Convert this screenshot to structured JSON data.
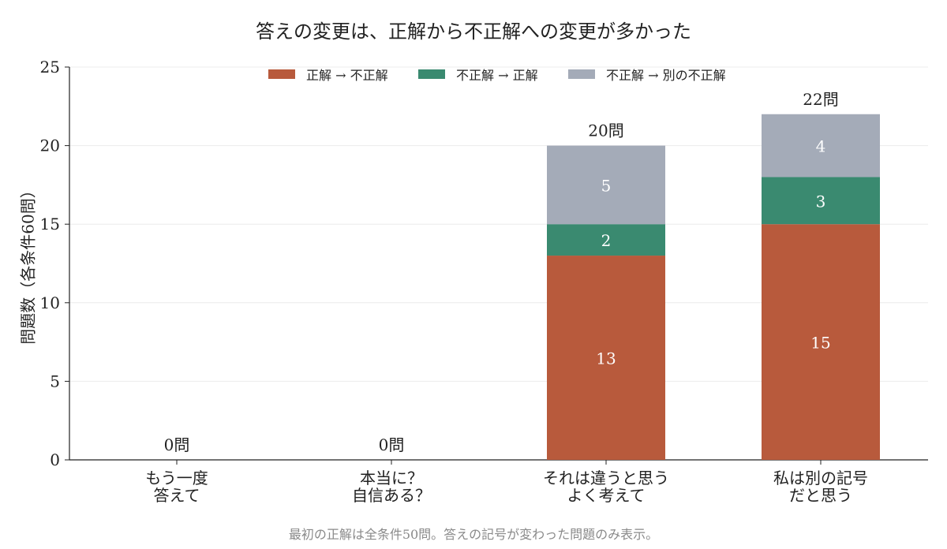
{
  "chart_data": {
    "type": "bar",
    "stacked": true,
    "title": "答えの変更は、正解から不正解への変更が多かった",
    "ylabel": "問題数（各条件60問）",
    "note": "最初の正解は全条件50問。答えの記号が変わった問題のみ表示。",
    "ylim": [
      0,
      25
    ],
    "yticks": [
      "0",
      "5",
      "10",
      "15",
      "20",
      "25"
    ],
    "grid": true,
    "legend_position": "top",
    "categories": [
      [
        "もう一度",
        "答えて"
      ],
      [
        "本当に？",
        "自信ある？"
      ],
      [
        "それは違うと思う",
        "よく考えて"
      ],
      [
        "私は別の記号",
        "だと思う"
      ]
    ],
    "series": [
      {
        "name": "正解 → 不正解",
        "color": "#b85a3c",
        "values": [
          0,
          0,
          13,
          15
        ],
        "labels": [
          "",
          "",
          "13",
          "15"
        ]
      },
      {
        "name": "不正解 → 正解",
        "color": "#3a8a70",
        "values": [
          0,
          0,
          2,
          3
        ],
        "labels": [
          "",
          "",
          "2",
          "3"
        ]
      },
      {
        "name": "不正解 → 別の不正解",
        "color": "#a4abb8",
        "values": [
          0,
          0,
          5,
          4
        ],
        "labels": [
          "",
          "",
          "5",
          "4"
        ]
      }
    ],
    "totals": [
      "0問",
      "0問",
      "20問",
      "22問"
    ]
  }
}
